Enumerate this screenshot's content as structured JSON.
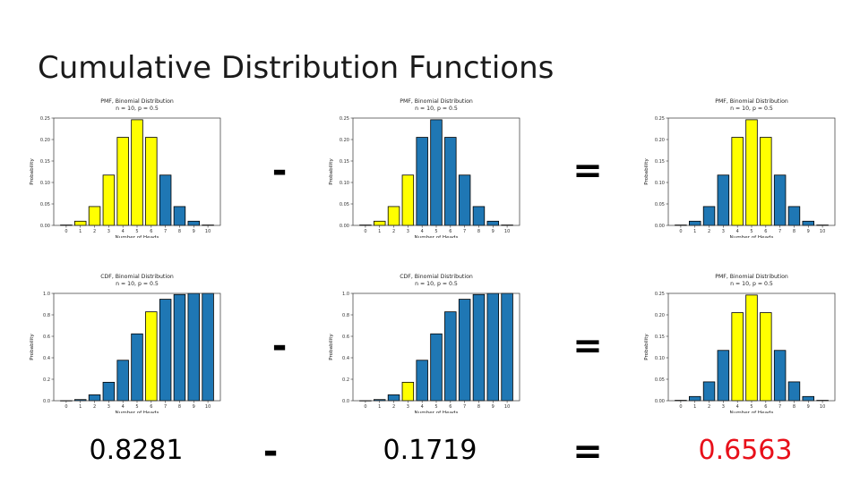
{
  "title": "Cumulative Distribution Functions",
  "colors": {
    "bar": "#1f77b4",
    "highlight": "#ffff00",
    "result": "#e8101a"
  },
  "operators": {
    "minus": "-",
    "equals": "="
  },
  "values": {
    "left": "0.8281",
    "middle": "0.1719",
    "result": "0.6563"
  },
  "chart_data": [
    {
      "type": "bar",
      "title": "PMF, Binomial Distribution",
      "subtitle": "n = 10, p = 0.5",
      "xlabel": "Number of Heads",
      "ylabel": "Probability",
      "categories": [
        "0",
        "1",
        "2",
        "3",
        "4",
        "5",
        "6",
        "7",
        "8",
        "9",
        "10"
      ],
      "values": [
        0.001,
        0.0098,
        0.0439,
        0.1172,
        0.2051,
        0.2461,
        0.2051,
        0.1172,
        0.0439,
        0.0098,
        0.001
      ],
      "highlighted": [
        0,
        1,
        2,
        3,
        4,
        5,
        6
      ],
      "ylim": [
        0,
        0.25
      ],
      "yticks": [
        "0.00",
        "0.05",
        "0.10",
        "0.15",
        "0.20",
        "0.25"
      ]
    },
    {
      "type": "bar",
      "title": "PMF, Binomial Distribution",
      "subtitle": "n = 10, p = 0.5",
      "xlabel": "Number of Heads",
      "ylabel": "Probability",
      "categories": [
        "0",
        "1",
        "2",
        "3",
        "4",
        "5",
        "6",
        "7",
        "8",
        "9",
        "10"
      ],
      "values": [
        0.001,
        0.0098,
        0.0439,
        0.1172,
        0.2051,
        0.2461,
        0.2051,
        0.1172,
        0.0439,
        0.0098,
        0.001
      ],
      "highlighted": [
        0,
        1,
        2,
        3
      ],
      "ylim": [
        0,
        0.25
      ],
      "yticks": [
        "0.00",
        "0.05",
        "0.10",
        "0.15",
        "0.20",
        "0.25"
      ]
    },
    {
      "type": "bar",
      "title": "PMF, Binomial Distribution",
      "subtitle": "n = 10, p = 0.5",
      "xlabel": "Number of Heads",
      "ylabel": "Probability",
      "categories": [
        "0",
        "1",
        "2",
        "3",
        "4",
        "5",
        "6",
        "7",
        "8",
        "9",
        "10"
      ],
      "values": [
        0.001,
        0.0098,
        0.0439,
        0.1172,
        0.2051,
        0.2461,
        0.2051,
        0.1172,
        0.0439,
        0.0098,
        0.001
      ],
      "highlighted": [
        4,
        5,
        6
      ],
      "ylim": [
        0,
        0.25
      ],
      "yticks": [
        "0.00",
        "0.05",
        "0.10",
        "0.15",
        "0.20",
        "0.25"
      ]
    },
    {
      "type": "bar",
      "title": "CDF, Binomial Distribution",
      "subtitle": "n = 10, p = 0.5",
      "xlabel": "Number of Heads",
      "ylabel": "Probability",
      "categories": [
        "0",
        "1",
        "2",
        "3",
        "4",
        "5",
        "6",
        "7",
        "8",
        "9",
        "10"
      ],
      "values": [
        0.001,
        0.0107,
        0.0547,
        0.1719,
        0.377,
        0.623,
        0.8281,
        0.9453,
        0.9893,
        0.999,
        1.0
      ],
      "highlighted": [
        6
      ],
      "ylim": [
        0,
        1.0
      ],
      "yticks": [
        "0.0",
        "0.2",
        "0.4",
        "0.6",
        "0.8",
        "1.0"
      ]
    },
    {
      "type": "bar",
      "title": "CDF, Binomial Distribution",
      "subtitle": "n = 10, p = 0.5",
      "xlabel": "Number of Heads",
      "ylabel": "Probability",
      "categories": [
        "0",
        "1",
        "2",
        "3",
        "4",
        "5",
        "6",
        "7",
        "8",
        "9",
        "10"
      ],
      "values": [
        0.001,
        0.0107,
        0.0547,
        0.1719,
        0.377,
        0.623,
        0.8281,
        0.9453,
        0.9893,
        0.999,
        1.0
      ],
      "highlighted": [
        3
      ],
      "ylim": [
        0,
        1.0
      ],
      "yticks": [
        "0.0",
        "0.2",
        "0.4",
        "0.6",
        "0.8",
        "1.0"
      ]
    },
    {
      "type": "bar",
      "title": "PMF, Binomial Distribution",
      "subtitle": "n = 10, p = 0.5",
      "xlabel": "Number of Heads",
      "ylabel": "Probability",
      "categories": [
        "0",
        "1",
        "2",
        "3",
        "4",
        "5",
        "6",
        "7",
        "8",
        "9",
        "10"
      ],
      "values": [
        0.001,
        0.0098,
        0.0439,
        0.1172,
        0.2051,
        0.2461,
        0.2051,
        0.1172,
        0.0439,
        0.0098,
        0.001
      ],
      "highlighted": [
        4,
        5,
        6
      ],
      "ylim": [
        0,
        0.25
      ],
      "yticks": [
        "0.00",
        "0.05",
        "0.10",
        "0.15",
        "0.20",
        "0.25"
      ]
    }
  ]
}
